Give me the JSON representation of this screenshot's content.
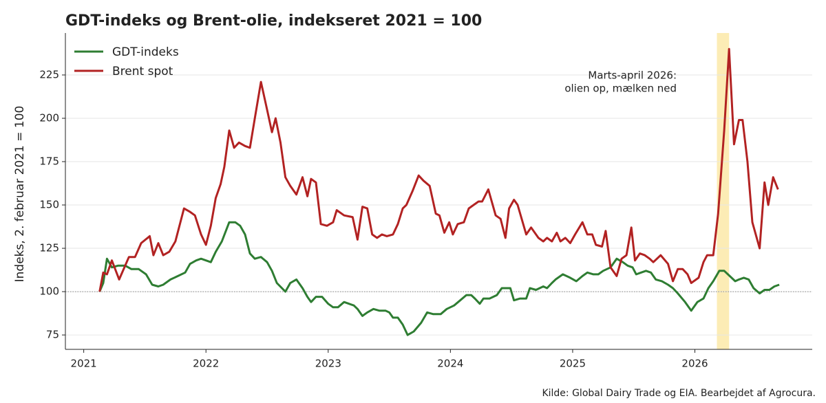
{
  "chart_data": {
    "type": "line",
    "title": "GDT-indeks og Brent-olie, indekseret 2021 = 100",
    "y_label": "Indeks, 2. februar 2021 = 100",
    "source": "Kilde: Global Dairy Trade og EIA. Bearbejdet af Agrocura.",
    "annotation": [
      "Marts-april 2026:",
      "olien op, mælken ned"
    ],
    "annotation_color": "#5d4037",
    "highlight": {
      "x": [
        2026.18,
        2026.28
      ],
      "color": "#fbe9a8"
    },
    "hline": 100,
    "xlim": [
      2020.85,
      2026.96
    ],
    "xticks": [
      2021,
      2022,
      2023,
      2024,
      2025,
      2026
    ],
    "ylim": [
      66.7,
      249.2
    ],
    "yticks": [
      75,
      100,
      125,
      150,
      175,
      200,
      225
    ],
    "grid": true,
    "legend": "upper left",
    "series": [
      {
        "name": "GDT-indeks",
        "color": "#2e7d32",
        "x": [
          2021.13,
          2021.16,
          2021.19,
          2021.23,
          2021.28,
          2021.34,
          2021.39,
          2021.45,
          2021.51,
          2021.56,
          2021.61,
          2021.65,
          2021.71,
          2021.77,
          2021.83,
          2021.87,
          2021.92,
          2021.96,
          2022.0,
          2022.04,
          2022.08,
          2022.13,
          2022.19,
          2022.24,
          2022.28,
          2022.32,
          2022.36,
          2022.4,
          2022.45,
          2022.5,
          2022.54,
          2022.58,
          2022.65,
          2022.69,
          2022.74,
          2022.79,
          2022.83,
          2022.86,
          2022.9,
          2022.95,
          2023.0,
          2023.04,
          2023.08,
          2023.13,
          2023.17,
          2023.21,
          2023.24,
          2023.28,
          2023.32,
          2023.37,
          2023.42,
          2023.47,
          2023.5,
          2023.53,
          2023.57,
          2023.61,
          2023.65,
          2023.7,
          2023.76,
          2023.81,
          2023.86,
          2023.92,
          2023.97,
          2024.03,
          2024.08,
          2024.13,
          2024.17,
          2024.2,
          2024.24,
          2024.27,
          2024.32,
          2024.38,
          2024.42,
          2024.46,
          2024.49,
          2024.52,
          2024.57,
          2024.62,
          2024.65,
          2024.7,
          2024.76,
          2024.79,
          2024.83,
          2024.86,
          2024.92,
          2024.95,
          2024.98,
          2025.03,
          2025.08,
          2025.12,
          2025.17,
          2025.21,
          2025.25,
          2025.31,
          2025.36,
          2025.41,
          2025.45,
          2025.49,
          2025.52,
          2025.56,
          2025.6,
          2025.64,
          2025.68,
          2025.73,
          2025.78,
          2025.82,
          2025.86,
          2025.92,
          2025.97,
          2026.02,
          2026.07,
          2026.11,
          2026.15,
          2026.2,
          2026.24,
          2026.27,
          2026.33,
          2026.36,
          2026.4,
          2026.44,
          2026.48,
          2026.53,
          2026.57,
          2026.61,
          2026.65,
          2026.69
        ],
        "values": [
          100,
          105,
          119,
          114,
          115,
          115,
          113,
          113,
          110,
          104,
          103,
          104,
          107,
          109,
          111,
          116,
          118,
          119,
          118,
          117,
          123,
          129,
          140,
          140,
          138,
          133,
          122,
          119,
          120,
          117,
          112,
          105,
          100,
          105,
          107,
          102,
          97,
          94,
          97,
          97,
          93,
          91,
          91,
          94,
          93,
          92,
          90,
          86,
          88,
          90,
          89,
          89,
          88,
          85,
          85,
          81,
          75,
          77,
          82,
          88,
          87,
          87,
          90,
          92,
          95,
          98,
          98,
          96,
          93,
          96,
          96,
          98,
          102,
          102,
          102,
          95,
          96,
          96,
          102,
          101,
          103,
          102,
          105,
          107,
          110,
          109,
          108,
          106,
          109,
          111,
          110,
          110,
          112,
          114,
          119,
          117,
          115,
          114,
          110,
          111,
          112,
          111,
          107,
          106,
          104,
          102,
          99,
          94,
          89,
          94,
          96,
          102,
          106,
          112,
          112,
          110,
          106,
          107,
          108,
          107,
          102,
          99,
          101,
          101,
          103,
          104
        ]
      },
      {
        "name": "Brent spot",
        "color": "#b22222",
        "x": [
          2021.13,
          2021.16,
          2021.19,
          2021.23,
          2021.29,
          2021.37,
          2021.42,
          2021.47,
          2021.54,
          2021.57,
          2021.61,
          2021.65,
          2021.7,
          2021.75,
          2021.82,
          2021.87,
          2021.91,
          2021.96,
          2022.0,
          2022.04,
          2022.08,
          2022.12,
          2022.15,
          2022.19,
          2022.23,
          2022.27,
          2022.32,
          2022.36,
          2022.4,
          2022.45,
          2022.5,
          2022.54,
          2022.57,
          2022.61,
          2022.65,
          2022.69,
          2022.74,
          2022.79,
          2022.83,
          2022.86,
          2022.9,
          2022.94,
          2022.99,
          2023.04,
          2023.07,
          2023.13,
          2023.2,
          2023.24,
          2023.28,
          2023.32,
          2023.36,
          2023.4,
          2023.44,
          2023.48,
          2023.53,
          2023.57,
          2023.61,
          2023.64,
          2023.69,
          2023.74,
          2023.78,
          2023.83,
          2023.88,
          2023.91,
          2023.95,
          2023.99,
          2024.02,
          2024.06,
          2024.11,
          2024.15,
          2024.19,
          2024.23,
          2024.26,
          2024.31,
          2024.37,
          2024.41,
          2024.45,
          2024.48,
          2024.52,
          2024.55,
          2024.62,
          2024.66,
          2024.72,
          2024.76,
          2024.79,
          2024.83,
          2024.87,
          2024.9,
          2024.94,
          2024.98,
          2025.02,
          2025.08,
          2025.12,
          2025.16,
          2025.19,
          2025.24,
          2025.27,
          2025.31,
          2025.36,
          2025.4,
          2025.44,
          2025.48,
          2025.51,
          2025.55,
          2025.59,
          2025.63,
          2025.66,
          2025.72,
          2025.78,
          2025.82,
          2025.86,
          2025.9,
          2025.94,
          2025.97,
          2026.03,
          2026.07,
          2026.1,
          2026.15,
          2026.19,
          2026.24,
          2026.28,
          2026.32,
          2026.36,
          2026.39,
          2026.43,
          2026.47,
          2026.53,
          2026.57,
          2026.6,
          2026.64,
          2026.68
        ],
        "values": [
          100,
          111,
          110,
          118,
          107,
          120,
          120,
          128,
          132,
          121,
          128,
          121,
          123,
          129,
          148,
          146,
          144,
          133,
          127,
          138,
          154,
          162,
          172,
          193,
          183,
          186,
          184,
          183,
          200,
          221,
          205,
          192,
          200,
          186,
          166,
          161,
          156,
          166,
          155,
          165,
          163,
          139,
          138,
          140,
          147,
          144,
          143,
          130,
          149,
          148,
          133,
          131,
          133,
          132,
          133,
          139,
          148,
          150,
          158,
          167,
          164,
          161,
          145,
          144,
          134,
          140,
          133,
          139,
          140,
          148,
          150,
          152,
          152,
          159,
          144,
          142,
          131,
          148,
          153,
          150,
          133,
          137,
          131,
          129,
          131,
          129,
          134,
          129,
          131,
          128,
          133,
          140,
          133,
          133,
          127,
          126,
          135,
          114,
          109,
          119,
          121,
          137,
          118,
          122,
          121,
          119,
          117,
          121,
          116,
          106,
          113,
          113,
          110,
          105,
          108,
          117,
          121,
          121,
          145,
          193,
          240,
          185,
          199,
          199,
          175,
          140,
          125,
          163,
          150,
          166,
          159
        ]
      }
    ]
  }
}
